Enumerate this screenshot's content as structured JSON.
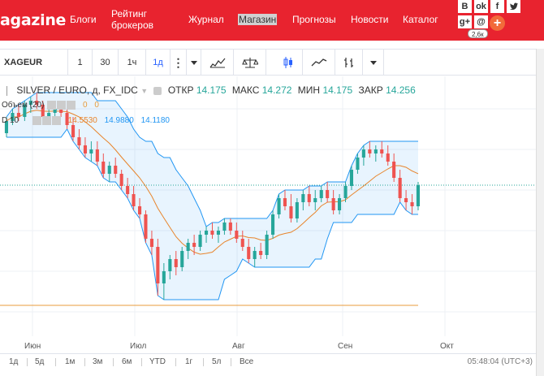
{
  "header": {
    "logo": "agazine",
    "nav": [
      "Блоги",
      "Рейтинг брокеров",
      "Журнал",
      "Магазин",
      "Прогнозы",
      "Новости",
      "Каталог"
    ],
    "share_count": "2,6к",
    "social_icons": [
      "vk-icon",
      "ok-icon",
      "facebook-icon",
      "twitter-icon",
      "google-plus-icon",
      "email-icon"
    ],
    "accent_color": "#e8232f"
  },
  "toolbar": {
    "symbol": "XAGEUR",
    "intervals": [
      "1",
      "30",
      "1ч",
      "1д"
    ],
    "active_interval": "1д",
    "more": "⋮"
  },
  "legend": {
    "symbol": "SILVER / EURO",
    "interval": "д",
    "source": "FX_IDC",
    "open_label": "ОТКР",
    "open": "14.175",
    "high_label": "МАКС",
    "high": "14.272",
    "low_label": "МИН",
    "low": "14.175",
    "close_label": "ЗАКР",
    "close": "14.256",
    "volume_label": "Объем (20)",
    "volume_values": [
      "0",
      "0"
    ],
    "kc_label": "D 10",
    "kc_values": [
      "14.5530",
      "14.9880",
      "14.1180"
    ]
  },
  "time_axis": [
    "Июн",
    "Июл",
    "Авг",
    "Сен",
    "Окт"
  ],
  "ranges": [
    "1д",
    "5д",
    "1м",
    "3м",
    "6м",
    "YTD",
    "1г",
    "5л",
    "Все"
  ],
  "clock": "05:48:04 (UTC+3)",
  "chart_data": {
    "type": "candlestick",
    "symbol": "XAGEUR",
    "ohlc_last": {
      "open": 14.175,
      "high": 14.272,
      "low": 14.175,
      "close": 14.256
    },
    "channel_basis_last": 14.553,
    "channel_upper_last": 14.988,
    "channel_lower_last": 14.118,
    "x_labels": [
      "Июн",
      "Июл",
      "Авг",
      "Сен",
      "Окт"
    ],
    "candles": [
      [
        14.9,
        15.1,
        14.85,
        15.05
      ],
      [
        15.05,
        15.2,
        15.0,
        15.15
      ],
      [
        15.15,
        15.25,
        15.05,
        15.1
      ],
      [
        15.1,
        15.3,
        15.05,
        15.25
      ],
      [
        15.25,
        15.35,
        15.15,
        15.3
      ],
      [
        15.3,
        15.4,
        15.2,
        15.25
      ],
      [
        15.25,
        15.3,
        15.05,
        15.1
      ],
      [
        15.1,
        15.2,
        15.0,
        15.15
      ],
      [
        15.15,
        15.25,
        15.05,
        15.2
      ],
      [
        15.2,
        15.3,
        15.1,
        15.15
      ],
      [
        15.15,
        15.2,
        14.95,
        15.0
      ],
      [
        15.0,
        15.1,
        14.8,
        14.85
      ],
      [
        14.85,
        14.95,
        14.7,
        14.75
      ],
      [
        14.75,
        14.85,
        14.6,
        14.65
      ],
      [
        14.65,
        14.8,
        14.55,
        14.7
      ],
      [
        14.7,
        14.8,
        14.5,
        14.55
      ],
      [
        14.55,
        14.65,
        14.35,
        14.4
      ],
      [
        14.4,
        14.55,
        14.3,
        14.5
      ],
      [
        14.5,
        14.6,
        14.35,
        14.4
      ],
      [
        14.4,
        14.45,
        14.2,
        14.25
      ],
      [
        14.25,
        14.35,
        14.1,
        14.15
      ],
      [
        14.15,
        14.25,
        13.95,
        14.0
      ],
      [
        14.0,
        14.1,
        13.85,
        13.9
      ],
      [
        13.9,
        13.95,
        13.55,
        13.6
      ],
      [
        13.6,
        13.7,
        13.4,
        13.5
      ],
      [
        13.5,
        13.6,
        12.9,
        13.05
      ],
      [
        13.05,
        13.3,
        12.85,
        13.2
      ],
      [
        13.2,
        13.4,
        13.1,
        13.35
      ],
      [
        13.35,
        13.45,
        13.15,
        13.25
      ],
      [
        13.25,
        13.5,
        13.2,
        13.45
      ],
      [
        13.45,
        13.6,
        13.35,
        13.55
      ],
      [
        13.55,
        13.65,
        13.4,
        13.5
      ],
      [
        13.5,
        13.7,
        13.45,
        13.65
      ],
      [
        13.65,
        13.75,
        13.55,
        13.7
      ],
      [
        13.7,
        13.8,
        13.6,
        13.65
      ],
      [
        13.65,
        13.75,
        13.55,
        13.7
      ],
      [
        13.7,
        13.85,
        13.65,
        13.8
      ],
      [
        13.8,
        13.85,
        13.65,
        13.7
      ],
      [
        13.7,
        13.8,
        13.55,
        13.6
      ],
      [
        13.6,
        13.7,
        13.45,
        13.5
      ],
      [
        13.5,
        13.6,
        13.3,
        13.35
      ],
      [
        13.35,
        13.5,
        13.25,
        13.45
      ],
      [
        13.45,
        13.55,
        13.35,
        13.4
      ],
      [
        13.4,
        13.7,
        13.35,
        13.65
      ],
      [
        13.65,
        13.95,
        13.6,
        13.9
      ],
      [
        13.9,
        14.15,
        13.85,
        14.1
      ],
      [
        14.1,
        14.2,
        13.95,
        14.0
      ],
      [
        14.0,
        14.15,
        13.8,
        13.85
      ],
      [
        13.85,
        14.1,
        13.8,
        14.05
      ],
      [
        14.05,
        14.2,
        13.95,
        14.15
      ],
      [
        14.15,
        14.25,
        14.0,
        14.05
      ],
      [
        14.05,
        14.2,
        13.95,
        14.1
      ],
      [
        14.1,
        14.25,
        14.05,
        14.2
      ],
      [
        14.2,
        14.3,
        14.05,
        14.1
      ],
      [
        14.1,
        14.2,
        13.9,
        13.95
      ],
      [
        13.95,
        14.15,
        13.9,
        14.1
      ],
      [
        14.1,
        14.3,
        14.05,
        14.25
      ],
      [
        14.25,
        14.5,
        14.2,
        14.45
      ],
      [
        14.45,
        14.65,
        14.4,
        14.6
      ],
      [
        14.6,
        14.75,
        14.5,
        14.7
      ],
      [
        14.7,
        14.8,
        14.6,
        14.65
      ],
      [
        14.65,
        14.75,
        14.55,
        14.7
      ],
      [
        14.7,
        14.8,
        14.6,
        14.65
      ],
      [
        14.65,
        14.75,
        14.5,
        14.55
      ],
      [
        14.55,
        14.65,
        14.3,
        14.35
      ],
      [
        14.35,
        14.45,
        14.05,
        14.1
      ],
      [
        14.1,
        14.2,
        13.95,
        14.05
      ],
      [
        14.05,
        14.15,
        13.9,
        14.0
      ],
      [
        14.0,
        14.3,
        13.95,
        14.26
      ]
    ],
    "ylim": [
      12.4,
      15.6
    ]
  }
}
